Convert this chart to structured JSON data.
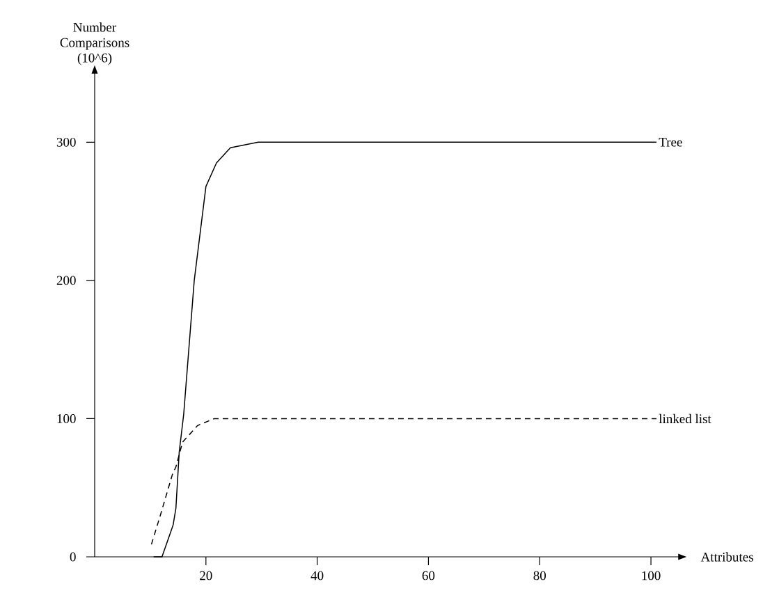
{
  "chart_data": {
    "type": "line",
    "xlabel": "Attributes",
    "ylabel": "Number Comparisons (10^6)",
    "xlim": [
      0,
      105
    ],
    "ylim": [
      0,
      350
    ],
    "xticks": [
      20,
      40,
      60,
      80,
      100
    ],
    "yticks": [
      0,
      100,
      200,
      300
    ],
    "marker": "none",
    "grid": false,
    "series": [
      {
        "name": "Tree",
        "color": "#000000",
        "line_style": "solid",
        "x": [
          10.6,
          12.1,
          14.1,
          14.6,
          15.2,
          16.0,
          17.9,
          20.0,
          21.9,
          24.4,
          29.4,
          101.0
        ],
        "values": [
          0,
          0,
          23,
          35,
          76,
          103,
          200,
          268,
          285,
          296,
          300,
          300
        ]
      },
      {
        "name": "linked list",
        "color": "#000000",
        "line_style": "dashed",
        "x": [
          10.2,
          11.8,
          14.0,
          14.6,
          15.8,
          18.5,
          21.5,
          101.0
        ],
        "values": [
          9,
          30,
          60,
          65,
          83,
          95,
          100,
          100
        ]
      }
    ]
  }
}
